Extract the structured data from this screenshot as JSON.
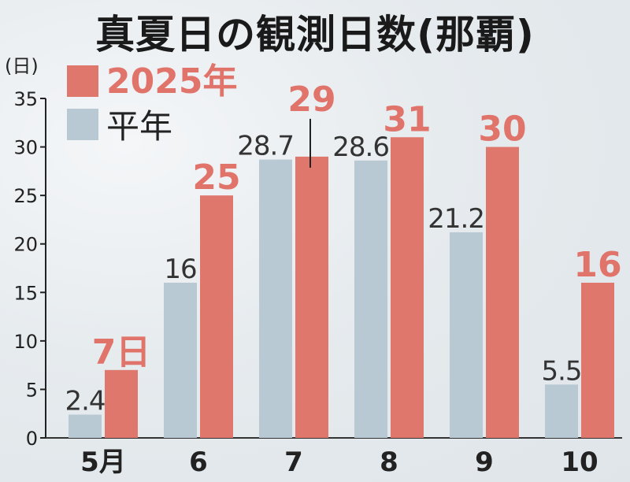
{
  "chart_data": {
    "type": "bar",
    "title": "真夏日の観測日数(那覇)",
    "unit_label": "(日)",
    "categories": [
      "5月",
      "6",
      "7",
      "8",
      "9",
      "10"
    ],
    "series": [
      {
        "name": "平年",
        "values": [
          2.4,
          16,
          28.7,
          28.6,
          21.2,
          5.5
        ],
        "labels": [
          "2.4",
          "16",
          "28.7",
          "28.6",
          "21.2",
          "5.5"
        ],
        "color": "#b9c9d3"
      },
      {
        "name": "2025年",
        "values": [
          7,
          25,
          29,
          31,
          30,
          16
        ],
        "labels": [
          "7日",
          "25",
          "29",
          "31",
          "30",
          "16"
        ],
        "color": "#e0776d"
      }
    ],
    "ylim": [
      0,
      35
    ],
    "yticks": [
      0,
      5,
      10,
      15,
      20,
      25,
      30,
      35
    ],
    "legend": "top-left",
    "grid": false
  }
}
